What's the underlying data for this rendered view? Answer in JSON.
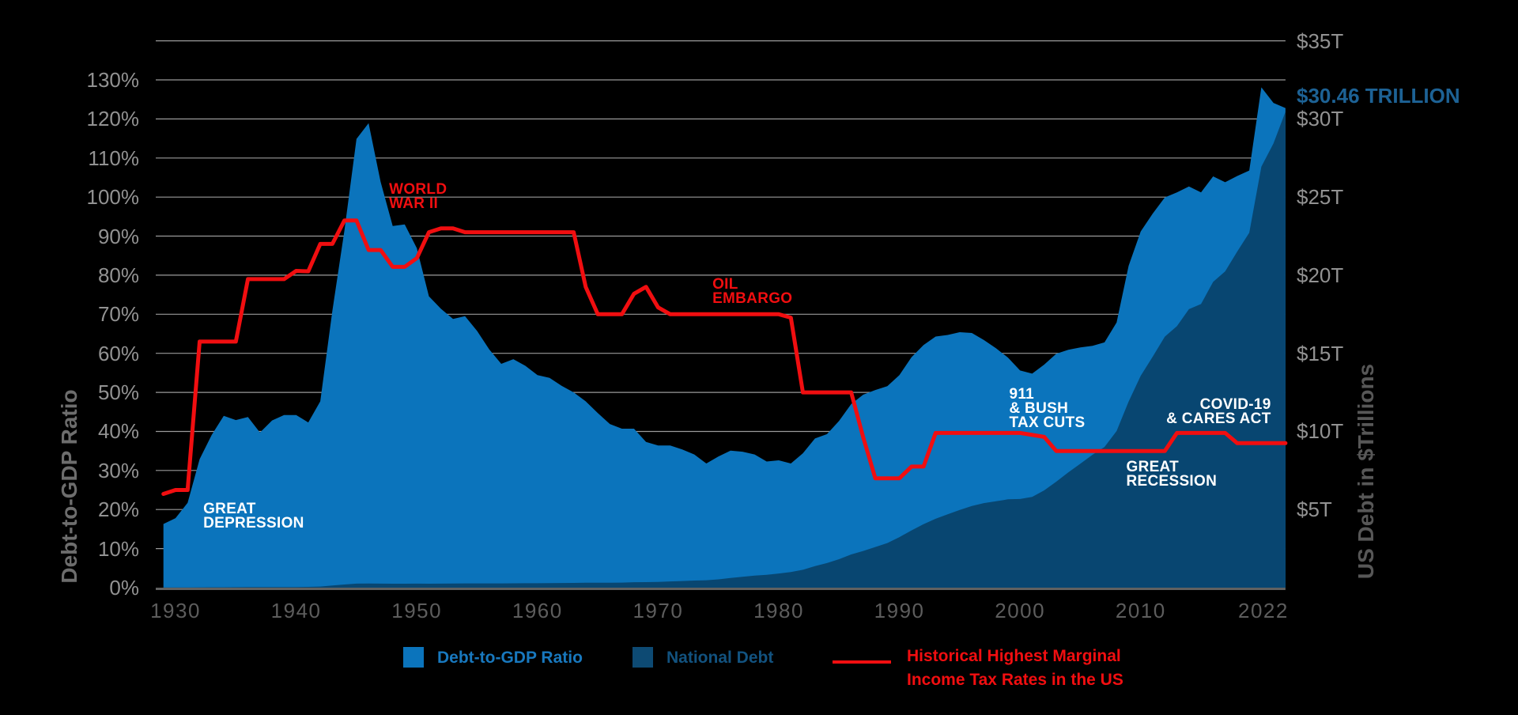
{
  "page": {
    "background": "#000000"
  },
  "chart_data": {
    "type": "area",
    "title": "",
    "callout": "$30.46 TRILLION",
    "callout_color": "#1d6295",
    "ylabel_left": "Debt-to-GDP Ratio",
    "ylabel_right": "US Debt in $Trillions",
    "xlabel": "",
    "x_range": [
      1929,
      2022
    ],
    "ylim_left_pct": [
      0,
      140
    ],
    "ylim_right_trillions": [
      0,
      35
    ],
    "grid": {
      "color": "#b5b5b5",
      "baseline_color": "#616161",
      "on": true
    },
    "x_axis": {
      "labels": [
        "1930",
        "1940",
        "1950",
        "1960",
        "1970",
        "1980",
        "1990",
        "2000",
        "2010",
        "2022"
      ],
      "values": [
        1930,
        1940,
        1950,
        1960,
        1970,
        1980,
        1990,
        2000,
        2010,
        2022
      ]
    },
    "y_left": {
      "labels": [
        "0%",
        "10%",
        "20%",
        "30%",
        "40%",
        "50%",
        "60%",
        "70%",
        "80%",
        "90%",
        "100%",
        "110%",
        "120%",
        "130%"
      ],
      "values": [
        0,
        10,
        20,
        30,
        40,
        50,
        60,
        70,
        80,
        90,
        100,
        110,
        120,
        130
      ],
      "max_grid": 140
    },
    "y_right": {
      "labels": [
        "$5T",
        "$10T",
        "$15T",
        "$20T",
        "$25T",
        "$30T",
        "$35T"
      ],
      "values": [
        5,
        10,
        15,
        20,
        25,
        30,
        35
      ],
      "pct_per_trillion": 4
    },
    "years": [
      1929,
      1930,
      1931,
      1932,
      1933,
      1934,
      1935,
      1936,
      1937,
      1938,
      1939,
      1940,
      1941,
      1942,
      1943,
      1944,
      1945,
      1946,
      1947,
      1948,
      1949,
      1950,
      1951,
      1952,
      1953,
      1954,
      1955,
      1956,
      1957,
      1958,
      1959,
      1960,
      1961,
      1962,
      1963,
      1964,
      1965,
      1966,
      1967,
      1968,
      1969,
      1970,
      1971,
      1972,
      1973,
      1974,
      1975,
      1976,
      1977,
      1978,
      1979,
      1980,
      1981,
      1982,
      1983,
      1984,
      1985,
      1986,
      1987,
      1988,
      1989,
      1990,
      1991,
      1992,
      1993,
      1994,
      1995,
      1996,
      1997,
      1998,
      1999,
      2000,
      2001,
      2002,
      2003,
      2004,
      2005,
      2006,
      2007,
      2008,
      2009,
      2010,
      2011,
      2012,
      2013,
      2014,
      2015,
      2016,
      2017,
      2018,
      2019,
      2020,
      2021,
      2022
    ],
    "series": [
      {
        "name": "Debt-to-GDP Ratio",
        "type": "area",
        "axis": "left",
        "unit": "%",
        "color": "#0b74bc",
        "values": [
          16.3,
          17.8,
          21.7,
          32.9,
          39.1,
          44.0,
          42.9,
          43.7,
          39.7,
          42.8,
          44.2,
          44.2,
          42.3,
          47.7,
          70.9,
          91.4,
          114.9,
          118.9,
          103.9,
          92.6,
          93.0,
          86.9,
          74.6,
          71.4,
          68.8,
          69.5,
          65.7,
          61.0,
          57.3,
          58.5,
          56.8,
          54.4,
          53.7,
          51.7,
          50.0,
          47.7,
          44.7,
          41.9,
          40.7,
          40.7,
          37.3,
          36.4,
          36.4,
          35.4,
          34.1,
          31.8,
          33.6,
          35.1,
          34.8,
          34.1,
          32.3,
          32.6,
          31.8,
          34.4,
          38.2,
          39.3,
          42.7,
          47.0,
          49.4,
          50.6,
          51.6,
          54.4,
          59.0,
          62.1,
          64.3,
          64.7,
          65.4,
          65.2,
          63.4,
          61.3,
          58.9,
          55.6,
          54.8,
          57.1,
          59.9,
          60.9,
          61.5,
          61.9,
          62.8,
          67.9,
          82.4,
          91.2,
          95.8,
          99.9,
          101.2,
          102.7,
          101.2,
          105.3,
          103.8,
          105.4,
          106.8,
          128.1,
          124.1,
          122.8
        ]
      },
      {
        "name": "National Debt",
        "type": "area",
        "axis": "right",
        "unit": "$T",
        "color": "#084671",
        "values": [
          0.017,
          0.016,
          0.017,
          0.02,
          0.023,
          0.027,
          0.029,
          0.034,
          0.036,
          0.037,
          0.04,
          0.043,
          0.049,
          0.072,
          0.137,
          0.201,
          0.259,
          0.269,
          0.258,
          0.252,
          0.253,
          0.257,
          0.255,
          0.259,
          0.266,
          0.271,
          0.274,
          0.273,
          0.271,
          0.276,
          0.285,
          0.286,
          0.289,
          0.298,
          0.306,
          0.312,
          0.317,
          0.32,
          0.326,
          0.348,
          0.354,
          0.371,
          0.398,
          0.427,
          0.458,
          0.475,
          0.533,
          0.62,
          0.699,
          0.772,
          0.827,
          0.908,
          0.998,
          1.142,
          1.377,
          1.572,
          1.823,
          2.125,
          2.35,
          2.602,
          2.857,
          3.233,
          3.665,
          4.065,
          4.411,
          4.693,
          4.974,
          5.225,
          5.413,
          5.526,
          5.656,
          5.674,
          5.807,
          6.228,
          6.783,
          7.379,
          7.933,
          8.507,
          9.008,
          10.025,
          11.91,
          13.562,
          14.79,
          16.066,
          16.738,
          17.824,
          18.151,
          19.573,
          20.245,
          21.516,
          22.719,
          26.945,
          28.429,
          30.46
        ]
      },
      {
        "name": "Historical Highest Marginal Income Tax Rates in the US",
        "type": "line",
        "axis": "left",
        "unit": "%",
        "color": "#f10e10",
        "values": [
          24,
          25,
          25,
          63,
          63,
          63,
          63,
          79,
          79,
          79,
          79,
          81.1,
          81,
          88,
          88,
          94,
          94,
          86.45,
          86.45,
          82.13,
          82.13,
          84.36,
          91,
          92,
          92,
          91,
          91,
          91,
          91,
          91,
          91,
          91,
          91,
          91,
          91,
          77,
          70,
          70,
          70,
          75.25,
          77,
          71.75,
          70,
          70,
          70,
          70,
          70,
          70,
          70,
          70,
          70,
          70,
          69.13,
          50,
          50,
          50,
          50,
          50,
          38.5,
          28,
          28,
          28,
          31,
          31,
          39.6,
          39.6,
          39.6,
          39.6,
          39.6,
          39.6,
          39.6,
          39.6,
          39.1,
          38.6,
          35,
          35,
          35,
          35,
          35,
          35,
          35,
          35,
          35,
          35,
          39.6,
          39.6,
          39.6,
          39.6,
          39.6,
          37,
          37,
          37,
          37,
          37
        ]
      }
    ],
    "annotations": [
      {
        "id": "great-depression",
        "lines": [
          "GREAT",
          "DEPRESSION"
        ],
        "color": "#ffffff",
        "year": 1932.3,
        "pct": 21.9,
        "align": "left"
      },
      {
        "id": "world-war-ii",
        "lines": [
          "WORLD",
          "WAR II"
        ],
        "color": "#f10e10",
        "year": 1947.7,
        "pct": 103.7,
        "align": "left"
      },
      {
        "id": "oil-embargo",
        "lines": [
          "OIL",
          "EMBARGO"
        ],
        "color": "#f10e10",
        "year": 1974.5,
        "pct": 79.4,
        "align": "left"
      },
      {
        "id": "911-bush-tax-cuts",
        "lines": [
          "911",
          "& BUSH",
          "TAX CUTS"
        ],
        "color": "#ffffff",
        "year": 1999.1,
        "pct": 51.2,
        "align": "left"
      },
      {
        "id": "great-recession",
        "lines": [
          "GREAT",
          "RECESSION"
        ],
        "color": "#ffffff",
        "year": 2008.8,
        "pct": 32.6,
        "align": "left"
      },
      {
        "id": "covid-19-cares-act",
        "lines": [
          "COVID-19",
          "& CARES ACT"
        ],
        "color": "#ffffff",
        "year": 2020.8,
        "pct": 48.6,
        "align": "right"
      }
    ]
  },
  "legend": {
    "items": [
      {
        "label": "Debt-to-GDP Ratio",
        "swatch": "square",
        "color": "#0b74bc",
        "text_color": "#1878be"
      },
      {
        "label": "National Debt",
        "swatch": "square",
        "color": "#0d4a73",
        "text_color": "#12527f"
      },
      {
        "label": "Historical Highest Marginal\nIncome Tax Rates in the US",
        "swatch": "line",
        "color": "#f10e10",
        "text_color": "#f10e10"
      }
    ]
  }
}
